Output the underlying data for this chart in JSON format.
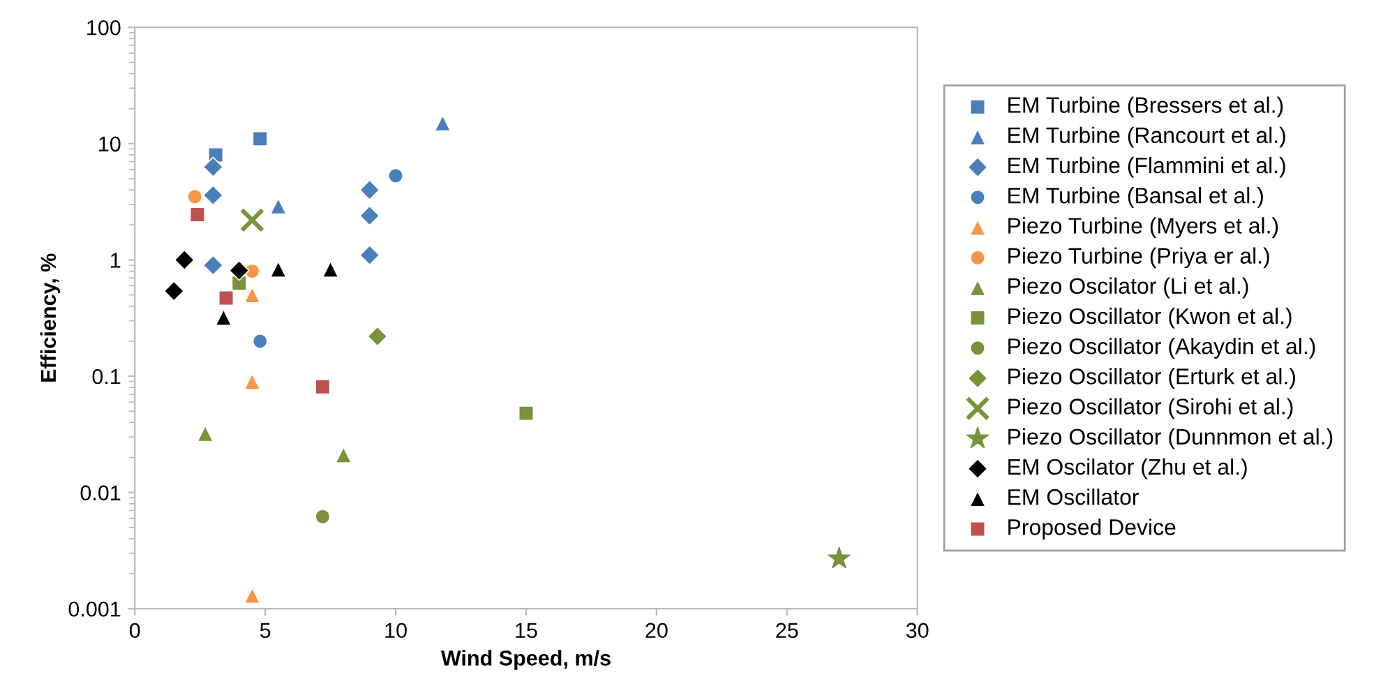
{
  "chart_data": {
    "type": "scatter",
    "xlabel": "Wind Speed, m/s",
    "ylabel": "Efficiency, %",
    "log": "y",
    "grid": false,
    "legend": "right",
    "xlim": [
      0,
      30
    ],
    "xticks": [
      0,
      5,
      10,
      15,
      20,
      25,
      30
    ],
    "ylim": [
      0.001,
      100
    ],
    "yticks": [
      0.001,
      0.01,
      0.1,
      1,
      10,
      100
    ],
    "series": [
      {
        "name": "EM Turbine (Bressers et al.)",
        "color": "#4a7ebb",
        "marker": "square",
        "x": [
          3.1,
          4.8
        ],
        "values": [
          8,
          11
        ]
      },
      {
        "name": "EM Turbine (Rancourt et al.)",
        "color": "#4a7ebb",
        "marker": "triangle",
        "x": [
          5.5,
          11.8
        ],
        "values": [
          2.9,
          15
        ]
      },
      {
        "name": "EM Turbine (Flammini et al.)",
        "color": "#4a7ebb",
        "marker": "diamond",
        "x": [
          3.0,
          3.0,
          3.0,
          9.0,
          9.0,
          9.0
        ],
        "values": [
          6.3,
          3.6,
          0.9,
          4.0,
          2.4,
          1.1
        ]
      },
      {
        "name": "EM Turbine (Bansal et al.)",
        "color": "#4a7ebb",
        "marker": "circle",
        "x": [
          10.0,
          4.8
        ],
        "values": [
          5.3,
          0.2
        ]
      },
      {
        "name": "Piezo Turbine (Myers et al.)",
        "color": "#f79646",
        "marker": "triangle",
        "x": [
          4.5,
          4.5,
          4.5
        ],
        "values": [
          0.5,
          0.09,
          0.0013
        ]
      },
      {
        "name": "Piezo Turbine (Priya er al.)",
        "color": "#f79646",
        "marker": "circle",
        "x": [
          2.3,
          4.5
        ],
        "values": [
          3.5,
          0.8
        ]
      },
      {
        "name": "Piezo Oscilator (Li et al.)",
        "color": "#77933c",
        "marker": "triangle",
        "x": [
          2.7,
          8.0
        ],
        "values": [
          0.032,
          0.021
        ]
      },
      {
        "name": "Piezo Oscillator (Kwon et al.)",
        "color": "#77933c",
        "marker": "square",
        "x": [
          4.0,
          15.0
        ],
        "values": [
          0.63,
          0.048
        ]
      },
      {
        "name": "Piezo Oscillator (Akaydin et al.)",
        "color": "#77933c",
        "marker": "circle",
        "x": [
          7.2
        ],
        "values": [
          0.0062
        ]
      },
      {
        "name": "Piezo Oscillator (Erturk et al.)",
        "color": "#77933c",
        "marker": "diamond",
        "x": [
          9.3
        ],
        "values": [
          0.22
        ]
      },
      {
        "name": "Piezo Oscillator (Sirohi et al.)",
        "color": "#77933c",
        "marker": "cross",
        "x": [
          4.5
        ],
        "values": [
          2.2
        ]
      },
      {
        "name": "Piezo Oscillator (Dunnmon et al.)",
        "color": "#77933c",
        "marker": "star",
        "x": [
          27.0
        ],
        "values": [
          0.0027
        ]
      },
      {
        "name": "EM Oscilator (Zhu et al.)",
        "color": "#000000",
        "marker": "diamond",
        "x": [
          1.9,
          1.5,
          4.0
        ],
        "values": [
          1.0,
          0.54,
          0.81
        ]
      },
      {
        "name": "EM Oscillator",
        "color": "#000000",
        "marker": "triangle",
        "x": [
          3.4,
          5.5,
          7.5
        ],
        "values": [
          0.32,
          0.83,
          0.83
        ]
      },
      {
        "name": "Proposed Device",
        "color": "#c0504d",
        "marker": "square",
        "x": [
          2.4,
          3.5,
          7.2
        ],
        "values": [
          2.45,
          0.47,
          0.081
        ]
      }
    ]
  }
}
